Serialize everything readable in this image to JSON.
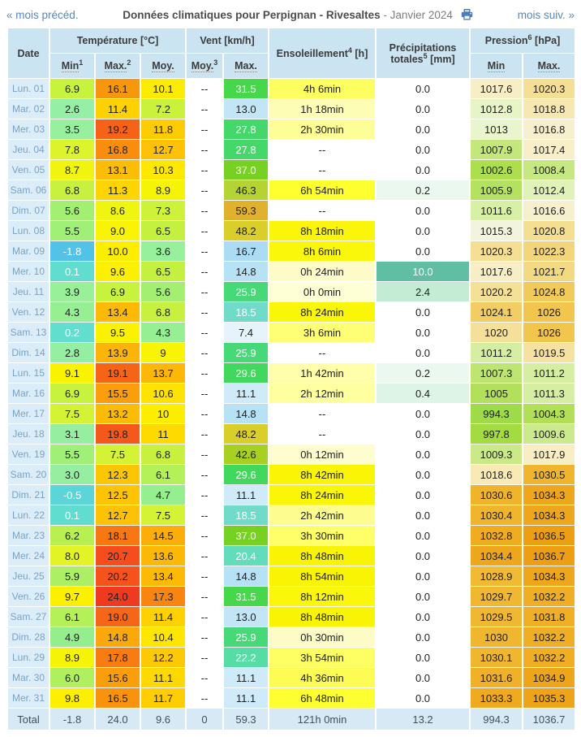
{
  "nav": {
    "prev_label": "« mois précéd.",
    "next_label": "mois suiv. »"
  },
  "title": {
    "main": "Données climatiques pour Perpignan - Rivesaltes",
    "suffix": " - Janvier 2024",
    "print_icon": "printer-icon"
  },
  "colors": {
    "link": "#5c86b8",
    "title_bold": "#4c4c4c",
    "title_gray": "#7d7d7d",
    "header_bg": "#cbe4f1",
    "date_col_bg": "#dbedf8",
    "date_col_text": "#7aa2c4",
    "total_row_bg": "#d7e9f4",
    "total_row_text": "#3f5161",
    "print_icon_blue": "#4a7cc0",
    "cell_border": "#ffffff"
  },
  "table": {
    "headers": {
      "date": "Date",
      "temperature": "Température [°C]",
      "wind": "Vent [km/h]",
      "sun": {
        "label": "Ensoleillement",
        "sup": "4",
        "unit": " [h]"
      },
      "precip": {
        "line1": "Précipitations",
        "label2": "totales",
        "sup": "5",
        "unit": " [mm]"
      },
      "pressure": {
        "label": "Pression",
        "sup": "6",
        "unit": " [hPa]"
      },
      "sub": [
        {
          "label": "Min",
          "sup": "1"
        },
        {
          "label": "Max.",
          "sup": "2"
        },
        {
          "label": "Moy.",
          "sup": ""
        },
        {
          "label": "Moy.",
          "sup": "3"
        },
        {
          "label": "Max.",
          "sup": ""
        },
        {
          "label": "Min",
          "sup": ""
        },
        {
          "label": "Max.",
          "sup": ""
        }
      ]
    },
    "rows": [
      {
        "date": "Lun. 01",
        "tmin": "6.9",
        "tmax": "16.1",
        "tmoy": "10.1",
        "vmoy": "--",
        "vmax": "31.5",
        "sun": "4h 6min",
        "prec": "0.0",
        "pmin": "1017.6",
        "pmax": "1020.3"
      },
      {
        "date": "Mar. 02",
        "tmin": "2.6",
        "tmax": "11.4",
        "tmoy": "7.2",
        "vmoy": "--",
        "vmax": "13.0",
        "sun": "1h 18min",
        "prec": "0.0",
        "pmin": "1012.8",
        "pmax": "1018.8"
      },
      {
        "date": "Mer. 03",
        "tmin": "3.5",
        "tmax": "19.2",
        "tmoy": "11.8",
        "vmoy": "--",
        "vmax": "27.8",
        "sun": "2h 30min",
        "prec": "0.0",
        "pmin": "1013",
        "pmax": "1016.8"
      },
      {
        "date": "Jeu. 04",
        "tmin": "7.8",
        "tmax": "16.8",
        "tmoy": "12.7",
        "vmoy": "--",
        "vmax": "27.8",
        "sun": "--",
        "prec": "0.0",
        "pmin": "1007.9",
        "pmax": "1017.4"
      },
      {
        "date": "Ven. 05",
        "tmin": "8.7",
        "tmax": "13.1",
        "tmoy": "10.3",
        "vmoy": "--",
        "vmax": "37.0",
        "sun": "--",
        "prec": "0.0",
        "pmin": "1002.6",
        "pmax": "1008.4"
      },
      {
        "date": "Sam. 06",
        "tmin": "6.8",
        "tmax": "11.3",
        "tmoy": "8.9",
        "vmoy": "--",
        "vmax": "46.3",
        "sun": "6h 54min",
        "prec": "0.2",
        "pmin": "1005.9",
        "pmax": "1012.4"
      },
      {
        "date": "Dim. 07",
        "tmin": "5.6",
        "tmax": "8.6",
        "tmoy": "7.3",
        "vmoy": "--",
        "vmax": "59.3",
        "sun": "--",
        "prec": "0.0",
        "pmin": "1011.6",
        "pmax": "1016.6"
      },
      {
        "date": "Lun. 08",
        "tmin": "5.5",
        "tmax": "9.0",
        "tmoy": "6.5",
        "vmoy": "--",
        "vmax": "48.2",
        "sun": "8h 18min",
        "prec": "0.0",
        "pmin": "1015.3",
        "pmax": "1020.8"
      },
      {
        "date": "Mar. 09",
        "tmin": "-1.8",
        "tmax": "10.0",
        "tmoy": "3.6",
        "vmoy": "--",
        "vmax": "16.7",
        "sun": "8h 6min",
        "prec": "0.0",
        "pmin": "1020.3",
        "pmax": "1022.3"
      },
      {
        "date": "Mer. 10",
        "tmin": "0.1",
        "tmax": "9.6",
        "tmoy": "6.5",
        "vmoy": "--",
        "vmax": "14.8",
        "sun": "0h 24min",
        "prec": "10.0",
        "pmin": "1017.6",
        "pmax": "1021.7"
      },
      {
        "date": "Jeu. 11",
        "tmin": "3.9",
        "tmax": "6.9",
        "tmoy": "5.6",
        "vmoy": "--",
        "vmax": "25.9",
        "sun": "0h 0min",
        "prec": "2.4",
        "pmin": "1020.2",
        "pmax": "1024.8"
      },
      {
        "date": "Ven. 12",
        "tmin": "4.3",
        "tmax": "13.4",
        "tmoy": "6.8",
        "vmoy": "--",
        "vmax": "18.5",
        "sun": "8h 24min",
        "prec": "0.0",
        "pmin": "1024.1",
        "pmax": "1026"
      },
      {
        "date": "Sam. 13",
        "tmin": "0.2",
        "tmax": "9.5",
        "tmoy": "4.3",
        "vmoy": "--",
        "vmax": "7.4",
        "sun": "3h 6min",
        "prec": "0.0",
        "pmin": "1020",
        "pmax": "1026"
      },
      {
        "date": "Dim. 14",
        "tmin": "2.8",
        "tmax": "13.9",
        "tmoy": "9",
        "vmoy": "--",
        "vmax": "25.9",
        "sun": "--",
        "prec": "0.0",
        "pmin": "1011.2",
        "pmax": "1019.5"
      },
      {
        "date": "Lun. 15",
        "tmin": "9.1",
        "tmax": "19.1",
        "tmoy": "13.7",
        "vmoy": "--",
        "vmax": "29.6",
        "sun": "1h 42min",
        "prec": "0.2",
        "pmin": "1007.3",
        "pmax": "1011.2"
      },
      {
        "date": "Mar. 16",
        "tmin": "6.9",
        "tmax": "15.5",
        "tmoy": "10.6",
        "vmoy": "--",
        "vmax": "11.1",
        "sun": "2h 12min",
        "prec": "0.4",
        "pmin": "1005",
        "pmax": "1011.3"
      },
      {
        "date": "Mer. 17",
        "tmin": "7.5",
        "tmax": "13.2",
        "tmoy": "10",
        "vmoy": "--",
        "vmax": "14.8",
        "sun": "--",
        "prec": "0.0",
        "pmin": "994.3",
        "pmax": "1004.3"
      },
      {
        "date": "Jeu. 18",
        "tmin": "3.1",
        "tmax": "19.8",
        "tmoy": "11",
        "vmoy": "--",
        "vmax": "48.2",
        "sun": "--",
        "prec": "0.0",
        "pmin": "997.8",
        "pmax": "1009.6"
      },
      {
        "date": "Ven. 19",
        "tmin": "5.5",
        "tmax": "7.5",
        "tmoy": "6.8",
        "vmoy": "--",
        "vmax": "42.6",
        "sun": "0h 12min",
        "prec": "0.0",
        "pmin": "1009.3",
        "pmax": "1017.9"
      },
      {
        "date": "Sam. 20",
        "tmin": "3.0",
        "tmax": "12.3",
        "tmoy": "6.1",
        "vmoy": "--",
        "vmax": "29.6",
        "sun": "8h 42min",
        "prec": "0.0",
        "pmin": "1018.6",
        "pmax": "1030.5"
      },
      {
        "date": "Dim. 21",
        "tmin": "-0.5",
        "tmax": "12.5",
        "tmoy": "4.7",
        "vmoy": "--",
        "vmax": "11.1",
        "sun": "8h 24min",
        "prec": "0.0",
        "pmin": "1030.6",
        "pmax": "1034.3"
      },
      {
        "date": "Lun. 22",
        "tmin": "0.1",
        "tmax": "12.7",
        "tmoy": "7.5",
        "vmoy": "--",
        "vmax": "18.5",
        "sun": "2h 42min",
        "prec": "0.0",
        "pmin": "1030.4",
        "pmax": "1034.3"
      },
      {
        "date": "Mar. 23",
        "tmin": "6.2",
        "tmax": "18.1",
        "tmoy": "14.5",
        "vmoy": "--",
        "vmax": "37.0",
        "sun": "3h 30min",
        "prec": "0.0",
        "pmin": "1032.8",
        "pmax": "1036.5"
      },
      {
        "date": "Mer. 24",
        "tmin": "8.0",
        "tmax": "20.7",
        "tmoy": "13.6",
        "vmoy": "--",
        "vmax": "20.4",
        "sun": "8h 48min",
        "prec": "0.0",
        "pmin": "1034.4",
        "pmax": "1036.7"
      },
      {
        "date": "Jeu. 25",
        "tmin": "5.9",
        "tmax": "20.2",
        "tmoy": "13.4",
        "vmoy": "--",
        "vmax": "14.8",
        "sun": "8h 54min",
        "prec": "0.0",
        "pmin": "1028.9",
        "pmax": "1034.3"
      },
      {
        "date": "Ven. 26",
        "tmin": "9.7",
        "tmax": "24.0",
        "tmoy": "17.3",
        "vmoy": "--",
        "vmax": "31.5",
        "sun": "8h 12min",
        "prec": "0.0",
        "pmin": "1029.7",
        "pmax": "1032.2"
      },
      {
        "date": "Sam. 27",
        "tmin": "6.1",
        "tmax": "19.0",
        "tmoy": "11.4",
        "vmoy": "--",
        "vmax": "13.0",
        "sun": "8h 48min",
        "prec": "0.0",
        "pmin": "1029.5",
        "pmax": "1031.8"
      },
      {
        "date": "Dim. 28",
        "tmin": "4.9",
        "tmax": "14.8",
        "tmoy": "10.4",
        "vmoy": "--",
        "vmax": "25.9",
        "sun": "0h 30min",
        "prec": "0.0",
        "pmin": "1030",
        "pmax": "1032.2"
      },
      {
        "date": "Lun. 29",
        "tmin": "8.9",
        "tmax": "17.8",
        "tmoy": "12.2",
        "vmoy": "--",
        "vmax": "22.2",
        "sun": "3h 54min",
        "prec": "0.0",
        "pmin": "1030.1",
        "pmax": "1032.2"
      },
      {
        "date": "Mar. 30",
        "tmin": "6.0",
        "tmax": "15.6",
        "tmoy": "11.1",
        "vmoy": "--",
        "vmax": "11.1",
        "sun": "4h 36min",
        "prec": "0.0",
        "pmin": "1031.6",
        "pmax": "1034.9"
      },
      {
        "date": "Mer. 31",
        "tmin": "9.8",
        "tmax": "16.5",
        "tmoy": "11.7",
        "vmoy": "--",
        "vmax": "11.1",
        "sun": "6h 48min",
        "prec": "0.0",
        "pmin": "1033.3",
        "pmax": "1035.3"
      }
    ],
    "total": {
      "date": "Total",
      "tmin": "-1.8",
      "tmax": "24.0",
      "tmoy": "9.6",
      "vmoy": "0",
      "vmax": "59.3",
      "sun": "121h 0min",
      "prec": "13.2",
      "pmin": "994.3",
      "pmax": "1036.7"
    }
  },
  "scales": {
    "temp": [
      [
        -2,
        "#50c0e8"
      ],
      [
        -1,
        "#58cedd"
      ],
      [
        0,
        "#60dcd2"
      ],
      [
        0.5,
        "#66e2c8"
      ],
      [
        1.5,
        "#7deab4"
      ],
      [
        2.6,
        "#95efa5"
      ],
      [
        4,
        "#98f098"
      ],
      [
        5,
        "#93ee8b"
      ],
      [
        5.8,
        "#a8ef6a"
      ],
      [
        6.5,
        "#c4f140"
      ],
      [
        7.2,
        "#caf23c"
      ],
      [
        8,
        "#e2f426"
      ],
      [
        9,
        "#f8f403"
      ],
      [
        10,
        "#fdee00"
      ],
      [
        10.5,
        "#ffe400"
      ],
      [
        11.5,
        "#fed002"
      ],
      [
        12.5,
        "#fdc405"
      ],
      [
        13.5,
        "#fcb907"
      ],
      [
        14.5,
        "#fbad09"
      ],
      [
        15.5,
        "#fa9f0b"
      ],
      [
        16.5,
        "#f9920d"
      ],
      [
        17.5,
        "#f88211"
      ],
      [
        18.5,
        "#f76f15"
      ],
      [
        19.5,
        "#f55c1a"
      ],
      [
        20.5,
        "#f54e1d"
      ],
      [
        22,
        "#f2431f"
      ],
      [
        24,
        "#ef3a20"
      ]
    ],
    "wind": [
      [
        7,
        "#e8f4fb"
      ],
      [
        13,
        "#c3e6f7"
      ],
      [
        16.7,
        "#abdcf3"
      ],
      [
        18.5,
        "#70dbc8"
      ],
      [
        20.4,
        "#62dcba"
      ],
      [
        22.2,
        "#55dda5"
      ],
      [
        25.9,
        "#47d878"
      ],
      [
        29.6,
        "#42d75d"
      ],
      [
        31.5,
        "#47d74b"
      ],
      [
        37,
        "#77d122"
      ],
      [
        42.6,
        "#a8d023"
      ],
      [
        46.3,
        "#b5d434"
      ],
      [
        48.2,
        "#dace2a"
      ],
      [
        59.3,
        "#e0b12d"
      ]
    ],
    "sun": [
      [
        0,
        "#ffffd6"
      ],
      [
        0.5,
        "#fdfbc6"
      ],
      [
        1.3,
        "#fefdb5"
      ],
      [
        2.2,
        "#feff9e"
      ],
      [
        2.75,
        "#fdfd8d"
      ],
      [
        3.2,
        "#ffff70"
      ],
      [
        3.9,
        "#feff63"
      ],
      [
        4.6,
        "#fcfc55"
      ],
      [
        6.9,
        "#fdff2e"
      ],
      [
        8.1,
        "#fbf70b"
      ],
      [
        8.9,
        "#f9f402"
      ]
    ],
    "precip": [
      [
        0,
        "#ffffff"
      ],
      [
        0.2,
        "#ebf8ef"
      ],
      [
        0.4,
        "#def4e6"
      ],
      [
        2.4,
        "#c4ecd4"
      ],
      [
        10,
        "#60bfa2"
      ]
    ],
    "pressure": [
      [
        994,
        "#9ddc49"
      ],
      [
        998,
        "#a3dc3f"
      ],
      [
        1003,
        "#aede4e"
      ],
      [
        1006,
        "#b4e160"
      ],
      [
        1008,
        "#c4e77b"
      ],
      [
        1010,
        "#cdeb92"
      ],
      [
        1012,
        "#dbf0ab"
      ],
      [
        1013,
        "#e9f5cd"
      ],
      [
        1014,
        "#f0f5d8"
      ],
      [
        1015.3,
        "#f3f4dd"
      ],
      [
        1016.5,
        "#f7f0cf"
      ],
      [
        1018,
        "#f9edc3"
      ],
      [
        1019.5,
        "#f6e2a0"
      ],
      [
        1021,
        "#f4dd8c"
      ],
      [
        1023,
        "#f3d172"
      ],
      [
        1025,
        "#f2c957"
      ],
      [
        1027,
        "#f1c143"
      ],
      [
        1029,
        "#f0ba34"
      ],
      [
        1031,
        "#f0b22a"
      ],
      [
        1033,
        "#efab20"
      ],
      [
        1035,
        "#eea51a"
      ],
      [
        1037,
        "#ed9d12"
      ]
    ]
  }
}
